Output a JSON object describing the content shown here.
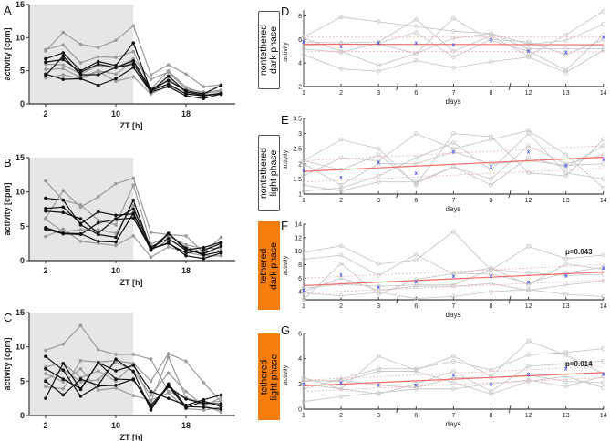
{
  "chart_data": [
    {
      "id": "A",
      "type": "line",
      "title": "A",
      "xlabel": "ZT [h]",
      "ylabel": "activity [cpm]",
      "ylim": [
        0,
        15
      ],
      "yticks": [
        0,
        5,
        10,
        15
      ],
      "xticks": [
        2,
        10,
        18
      ],
      "shaded_dark_phase_zt": [
        0,
        12
      ],
      "x": [
        2,
        4,
        6,
        8,
        10,
        12,
        14,
        16,
        18,
        20,
        22
      ],
      "series": [
        {
          "color": "black",
          "values": [
            6.8,
            7.7,
            5,
            6.4,
            5.8,
            9.2,
            1.9,
            4.2,
            1.8,
            1.3,
            1.6
          ]
        },
        {
          "color": "black",
          "values": [
            4.5,
            3.7,
            3.8,
            2.8,
            3.8,
            5.5,
            1.8,
            2.6,
            1.2,
            0.8,
            1.5
          ]
        },
        {
          "color": "black",
          "values": [
            4.3,
            7.2,
            4.4,
            4.4,
            5.5,
            6,
            2,
            3,
            1.5,
            1.2,
            1.6
          ]
        },
        {
          "color": "black",
          "values": [
            6.3,
            6.7,
            4.8,
            6,
            5.5,
            6.5,
            2.2,
            3.5,
            2,
            1.5,
            2.8
          ]
        },
        {
          "color": "gray",
          "values": [
            8,
            10.8,
            9,
            8.5,
            9.6,
            11.8,
            4.4,
            5.9,
            4.5,
            2.6,
            2.9
          ]
        },
        {
          "color": "gray",
          "values": [
            8.2,
            8.9,
            6.2,
            7.1,
            7,
            7.9,
            2.2,
            5,
            2.5,
            1.6,
            2.1
          ]
        },
        {
          "color": "gray",
          "values": [
            3.9,
            4.4,
            3.8,
            4.9,
            3.4,
            4.1,
            1.5,
            2.8,
            1.5,
            1.3,
            1.4
          ]
        },
        {
          "color": "gray",
          "values": [
            6,
            5.9,
            4.5,
            5.8,
            5.4,
            6.8,
            3.7,
            4.8,
            2.2,
            1.8,
            1.8
          ]
        },
        {
          "color": "gray",
          "values": [
            5.2,
            5.3,
            4,
            5,
            4.5,
            6.4,
            1.6,
            3.8,
            1.7,
            1.5,
            2
          ]
        }
      ]
    },
    {
      "id": "B",
      "type": "line",
      "title": "B",
      "xlabel": "ZT [h]",
      "ylabel": "activity [cpm]",
      "ylim": [
        0,
        15
      ],
      "yticks": [
        0,
        5,
        10,
        15
      ],
      "xticks": [
        2,
        10,
        18
      ],
      "shaded_dark_phase_zt": [
        0,
        12
      ],
      "x": [
        2,
        4,
        6,
        8,
        10,
        12,
        14,
        16,
        18,
        20,
        22
      ],
      "series": [
        {
          "color": "black",
          "values": [
            9.1,
            8.8,
            5.2,
            3.8,
            3.4,
            8.8,
            1.6,
            4,
            1.6,
            1.9,
            2.7
          ]
        },
        {
          "color": "black",
          "values": [
            7.6,
            7.8,
            5.4,
            7.1,
            6.6,
            6.8,
            1.5,
            3.9,
            1.8,
            0.8,
            1.3
          ]
        },
        {
          "color": "black",
          "values": [
            4.8,
            4,
            3.9,
            2.8,
            2.7,
            6.9,
            1.7,
            2.6,
            0.7,
            0.3,
            1.1
          ]
        },
        {
          "color": "black",
          "values": [
            7.2,
            7,
            6.1,
            4,
            6.1,
            7.5,
            2,
            3.2,
            1.5,
            1,
            2.1
          ]
        },
        {
          "color": "black",
          "values": [
            4.6,
            3.9,
            3.8,
            5.5,
            6,
            6.2,
            1.7,
            2.5,
            1.1,
            1.5,
            2.5
          ]
        },
        {
          "color": "gray",
          "values": [
            6.2,
            10.2,
            7.8,
            9.3,
            11.2,
            12,
            4.1,
            3.8,
            3.6,
            1.2,
            3.4
          ]
        },
        {
          "color": "gray",
          "values": [
            11.6,
            8.8,
            8.1,
            5.9,
            5.2,
            11,
            2.4,
            3.5,
            2.3,
            1.8,
            1.8
          ]
        },
        {
          "color": "gray",
          "values": [
            3.5,
            4.6,
            2.8,
            2.5,
            2.2,
            3.6,
            0.5,
            2,
            1.2,
            0.7,
            0.7
          ]
        },
        {
          "color": "gray",
          "values": [
            6,
            4.2,
            4.5,
            4.5,
            4,
            8,
            1.5,
            3,
            2,
            1.2,
            1.5
          ]
        }
      ]
    },
    {
      "id": "C",
      "type": "line",
      "title": "C",
      "xlabel": "ZT [h]",
      "ylabel": "activity [cpm]",
      "ylim": [
        0,
        15
      ],
      "yticks": [
        0,
        5,
        10,
        15
      ],
      "xticks": [
        2,
        10,
        18
      ],
      "shaded_dark_phase_zt": [
        0,
        12
      ],
      "x": [
        2,
        4,
        6,
        8,
        10,
        12,
        14,
        16,
        18,
        20,
        22
      ],
      "series": [
        {
          "color": "black",
          "values": [
            8.6,
            6.6,
            2.8,
            4.3,
            4.4,
            5.3,
            1.2,
            4.2,
            2.4,
            1.8,
            1.7
          ]
        },
        {
          "color": "black",
          "values": [
            2.5,
            7.6,
            3.8,
            7.7,
            6.5,
            7.3,
            3.5,
            2.5,
            1.5,
            2.3,
            3
          ]
        },
        {
          "color": "black",
          "values": [
            5,
            3,
            5.3,
            4.4,
            8.2,
            6.4,
            0.8,
            4.6,
            1.3,
            1.2,
            0.9
          ]
        },
        {
          "color": "black",
          "values": [
            6.8,
            5.3,
            3.9,
            7.7,
            5.3,
            5.2,
            1.5,
            4.3,
            1.1,
            2.1,
            1.3
          ]
        },
        {
          "color": "gray",
          "values": [
            9.5,
            10.4,
            13.1,
            9.6,
            8.9,
            8.9,
            8.2,
            3.5,
            2.6,
            1.5,
            0.5
          ]
        },
        {
          "color": "gray",
          "values": [
            4.2,
            3.9,
            8,
            7.8,
            8,
            7.6,
            5,
            9,
            7.9,
            4.8,
            2
          ]
        },
        {
          "color": "gray",
          "values": [
            7.1,
            7.6,
            5.5,
            6.5,
            5,
            7.5,
            2,
            8.5,
            2.6,
            1.8,
            2.1
          ]
        },
        {
          "color": "gray",
          "values": [
            6.1,
            4.9,
            6.8,
            3.7,
            4,
            2.9,
            2.2,
            3.3,
            1,
            0.8,
            1.2
          ]
        },
        {
          "color": "gray",
          "values": [
            5.2,
            6.7,
            4.9,
            5.2,
            7.8,
            6.5,
            3,
            6.2,
            3.5,
            1.4,
            2.6
          ]
        }
      ]
    },
    {
      "id": "D",
      "type": "line",
      "title": "D",
      "xlabel": "days",
      "ylabel": "activity",
      "ylim": [
        2,
        8.5
      ],
      "yticks": [
        2,
        4,
        6,
        8
      ],
      "categories": [
        "1",
        "2",
        "3",
        "6",
        "7",
        "8",
        "12",
        "13",
        "14"
      ],
      "axis_breaks_after": [
        "3",
        "8"
      ],
      "series": [
        {
          "values": [
            6.2,
            7.9,
            7.5,
            7.1,
            6.7,
            6.5,
            5.6,
            5.9,
            7.3
          ]
        },
        {
          "values": [
            5.8,
            5.7,
            5.8,
            7.7,
            5,
            6.3,
            4.6,
            6.4,
            8.4
          ]
        },
        {
          "values": [
            4.7,
            3.5,
            3.3,
            4.2,
            3.6,
            4.1,
            4.5,
            3.2,
            5.1
          ]
        },
        {
          "values": [
            6.1,
            5,
            3.8,
            4.8,
            7.8,
            5.9,
            5,
            3.4,
            6.4
          ]
        },
        {
          "values": [
            5.2,
            4.9,
            5.7,
            6.6,
            4.5,
            6,
            5.8,
            4.7,
            6
          ]
        },
        {
          "values": [
            5.5,
            5.6,
            5.6,
            4.8,
            6.1,
            6.5,
            5.2,
            5.2,
            5.2
          ]
        }
      ],
      "means": [
        5.8,
        5.4,
        5.7,
        5.7,
        5.55,
        6,
        5,
        4.9,
        6.2
      ],
      "fit": [
        5.6,
        5.55
      ],
      "ci_upper": [
        6.2,
        6.2
      ],
      "ci_lower": [
        5.0,
        4.95
      ]
    },
    {
      "id": "E",
      "type": "line",
      "title": "E",
      "xlabel": "days",
      "ylabel": "activity",
      "ylim": [
        1,
        3.5
      ],
      "yticks": [
        1,
        1.5,
        2,
        2.5,
        3,
        3.5
      ],
      "categories": [
        "1",
        "2",
        "3",
        "6",
        "7",
        "8",
        "12",
        "13",
        "14"
      ],
      "axis_breaks_after": [
        "3",
        "8"
      ],
      "series": [
        {
          "values": [
            2.1,
            2.8,
            2.5,
            1.3,
            3,
            2.9,
            1.7,
            1.6,
            2.8
          ]
        },
        {
          "values": [
            1.6,
            2.2,
            2.1,
            3,
            2.5,
            2.8,
            3.1,
            2.3,
            1.2
          ]
        },
        {
          "values": [
            1.3,
            1.1,
            1.4,
            1.4,
            1.9,
            1.3,
            2.2,
            1.9,
            2.6
          ]
        },
        {
          "values": [
            1.1,
            1.2,
            1.6,
            2.2,
            2.7,
            1.8,
            3,
            1.7,
            1.5
          ]
        },
        {
          "values": [
            2.1,
            1.8,
            2.3,
            1.35,
            1.9,
            1.5,
            2.6,
            2,
            2.3
          ]
        },
        {
          "values": [
            2,
            1.3,
            2,
            2,
            2.4,
            2,
            2.1,
            1.95,
            2
          ]
        }
      ],
      "means": [
        1.8,
        1.55,
        2.05,
        1.7,
        2.4,
        1.9,
        2.4,
        1.95,
        2.15
      ],
      "fit": [
        1.75,
        2.22
      ],
      "ci_upper": [
        2.1,
        2.6
      ],
      "ci_lower": [
        1.4,
        1.85
      ]
    },
    {
      "id": "F",
      "type": "line",
      "title": "F",
      "xlabel": "days",
      "ylabel": "activity",
      "ylim": [
        2.8,
        14
      ],
      "yticks": [
        4,
        6,
        8,
        10,
        12,
        14
      ],
      "categories": [
        "1",
        "2",
        "3",
        "6",
        "7",
        "8",
        "12",
        "13",
        "14"
      ],
      "axis_breaks_after": [
        "3",
        "8"
      ],
      "p_value": "p=0.043",
      "series": [
        {
          "values": [
            9.8,
            10.8,
            8.1,
            8.7,
            12.9,
            7.2,
            10.7,
            8.9,
            9.4
          ]
        },
        {
          "values": [
            8.8,
            9.4,
            6.4,
            9.5,
            6.6,
            7.5,
            5,
            8.1,
            7.3
          ]
        },
        {
          "values": [
            2.8,
            8.2,
            3.6,
            5.8,
            6.7,
            6.6,
            5.3,
            6.8,
            7.6
          ]
        },
        {
          "values": [
            4,
            6,
            4.2,
            4.8,
            4.8,
            5.2,
            4.2,
            5,
            5.6
          ]
        },
        {
          "values": [
            3.8,
            3.4,
            3.9,
            3,
            3.3,
            4,
            4.3,
            3.6,
            3.3
          ]
        },
        {
          "values": [
            4.5,
            5.1,
            4.8,
            5,
            5,
            7.3,
            6.8,
            6.4,
            6.6
          ]
        }
      ],
      "means": [
        4.2,
        6.5,
        4.7,
        5.5,
        6.3,
        6.3,
        5.4,
        6.4,
        7.5
      ],
      "fit": [
        4.9,
        6.9
      ],
      "ci_upper": [
        6,
        8
      ],
      "ci_lower": [
        3.8,
        5.7
      ]
    },
    {
      "id": "G",
      "type": "line",
      "title": "G",
      "xlabel": "days",
      "ylabel": "activity",
      "ylim": [
        0,
        6
      ],
      "yticks": [
        0,
        2,
        4,
        6
      ],
      "categories": [
        "1",
        "2",
        "3",
        "6",
        "7",
        "8",
        "12",
        "13",
        "14"
      ],
      "axis_breaks_after": [
        "3",
        "8"
      ],
      "p_value": "p=0.014",
      "series": [
        {
          "values": [
            2.5,
            1.6,
            4.2,
            3.1,
            4.2,
            2.6,
            5.4,
            4.3,
            2.8
          ]
        },
        {
          "values": [
            1.6,
            2.4,
            3.2,
            3.2,
            3.8,
            3.1,
            4.3,
            4.5,
            4.8
          ]
        },
        {
          "values": [
            0.6,
            1,
            1.3,
            1.6,
            1.6,
            2,
            2.3,
            1.8,
            2.6
          ]
        },
        {
          "values": [
            2.3,
            2.2,
            3,
            3,
            2.1,
            1.2,
            2.2,
            2.6,
            1.7
          ]
        },
        {
          "values": [
            2,
            1.6,
            1.2,
            2,
            3,
            1.4,
            3.4,
            3.6,
            3.8
          ]
        },
        {
          "values": [
            2.2,
            2.3,
            1.9,
            1.7,
            2.5,
            2.5,
            2.7,
            2.2,
            2.1
          ]
        }
      ],
      "means": [
        2,
        2.1,
        1.9,
        1.9,
        2.7,
        2,
        2.8,
        3.2,
        2.8
      ],
      "fit": [
        1.85,
        2.9
      ],
      "ci_upper": [
        2.3,
        3.4
      ],
      "ci_lower": [
        1.4,
        2.5
      ]
    }
  ],
  "colors": {
    "black_series": "#111111",
    "gray_series": "#9a9a9a",
    "dark_phase_shade": "#e6e6e6",
    "individual": "#c8c8c8",
    "mean_marker": "#3344ee",
    "fit": "#f26a6a",
    "ci": "#f7b0b0",
    "tethered_box": "#f77d0c"
  },
  "labels": {
    "D": {
      "line1": "nontethered",
      "line2": "dark phase"
    },
    "E": {
      "line1": "nontethered",
      "line2": "light phase"
    },
    "F": {
      "line1": "tethered",
      "line2": "dark phase"
    },
    "G": {
      "line1": "tethered",
      "line2": "light phase"
    }
  },
  "mean_marker_glyph": "x"
}
